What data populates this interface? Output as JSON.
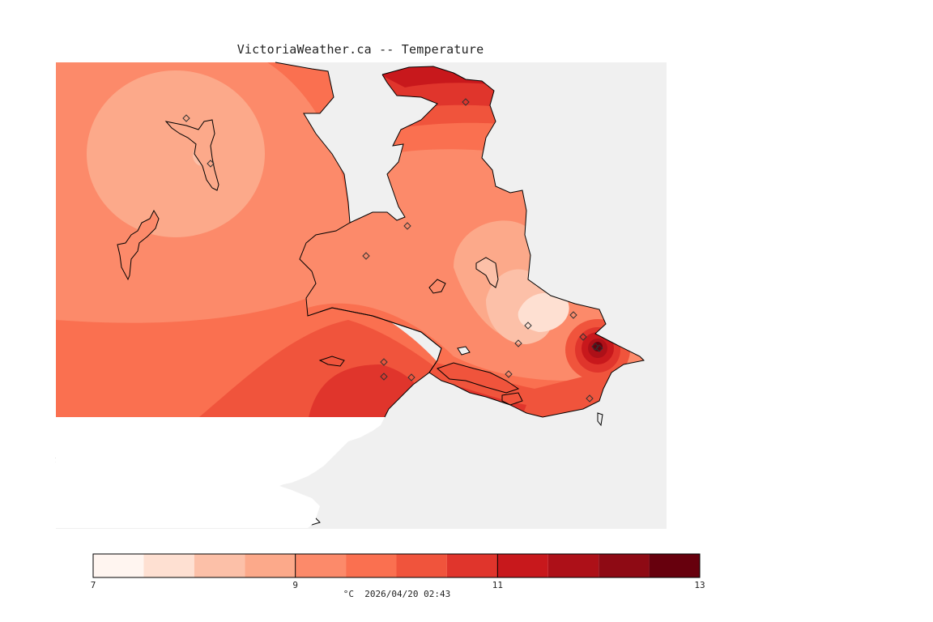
{
  "title": "VictoriaWeather.ca -- Temperature",
  "colors": {
    "sea": "#f0f0f0",
    "coast": "#000000",
    "station": "#333333"
  },
  "legend": {
    "unit": "°C",
    "timestamp": "2026/04/20 02:43",
    "min": 7,
    "max": 13,
    "labeled_ticks": [
      "7",
      "9",
      "11",
      "13"
    ],
    "bins": [
      {
        "from": 7.0,
        "to": 7.5,
        "color": "#fff5f0"
      },
      {
        "from": 7.5,
        "to": 8.0,
        "color": "#fee0d2"
      },
      {
        "from": 8.0,
        "to": 8.5,
        "color": "#fcc0a8"
      },
      {
        "from": 8.5,
        "to": 9.0,
        "color": "#fca98a"
      },
      {
        "from": 9.0,
        "to": 9.5,
        "color": "#fc8a6a"
      },
      {
        "from": 9.5,
        "to": 10.0,
        "color": "#fa7050"
      },
      {
        "from": 10.0,
        "to": 10.5,
        "color": "#f0543c"
      },
      {
        "from": 10.5,
        "to": 11.0,
        "color": "#e0352c"
      },
      {
        "from": 11.0,
        "to": 11.5,
        "color": "#c8181c"
      },
      {
        "from": 11.5,
        "to": 12.0,
        "color": "#ad1018"
      },
      {
        "from": 12.0,
        "to": 12.5,
        "color": "#8e0a14"
      },
      {
        "from": 12.5,
        "to": 13.0,
        "color": "#67000d"
      }
    ]
  }
}
